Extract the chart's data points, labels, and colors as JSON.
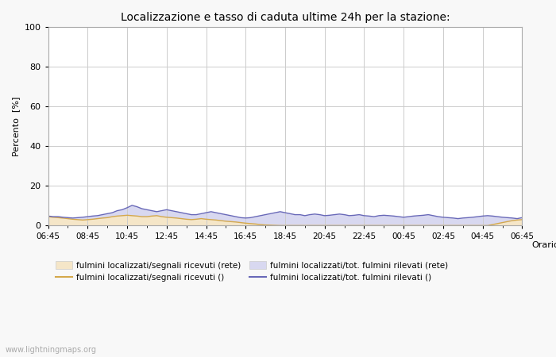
{
  "title": "Localizzazione e tasso di caduta ultime 24h per la stazione:",
  "ylabel": "Percento  [%]",
  "xlabel": "Orario",
  "watermark": "www.lightningmaps.org",
  "x_tick_labels": [
    "06:45",
    "08:45",
    "10:45",
    "12:45",
    "14:45",
    "16:45",
    "18:45",
    "20:45",
    "22:45",
    "00:45",
    "02:45",
    "04:45",
    "06:45"
  ],
  "ylim": [
    0,
    100
  ],
  "yticks": [
    0,
    20,
    40,
    60,
    80,
    100
  ],
  "yminor_ticks": [
    10,
    30,
    50,
    70,
    90
  ],
  "fill_color_1": "#f5e6c8",
  "fill_color_2": "#d8d8f0",
  "line_color_1": "#d4a84b",
  "line_color_2": "#6868b8",
  "legend_labels": [
    "fulmini localizzati/segnali ricevuti (rete)",
    "fulmini localizzati/segnali ricevuti ()",
    "fulmini localizzati/tot. fulmini rilevati (rete)",
    "fulmini localizzati/tot. fulmini rilevati ()"
  ],
  "background_color": "#f8f8f8",
  "plot_bg_color": "#ffffff",
  "grid_color": "#cccccc",
  "s1": [
    4.5,
    4.2,
    4.0,
    3.8,
    3.5,
    3.2,
    3.0,
    2.8,
    3.0,
    3.2,
    3.5,
    3.8,
    4.0,
    4.5,
    4.8,
    5.0,
    5.2,
    5.0,
    4.8,
    4.5,
    4.5,
    4.8,
    5.0,
    4.5,
    4.2,
    4.0,
    3.8,
    3.5,
    3.2,
    3.0,
    3.2,
    3.5,
    3.2,
    3.0,
    2.8,
    2.5,
    2.2,
    2.0,
    1.8,
    1.5,
    1.2,
    1.0,
    0.8,
    0.5,
    0.3,
    0.2,
    0.1,
    0.0,
    0.0,
    0.0,
    0.0,
    0.0,
    0.0,
    0.0,
    0.0,
    0.0,
    0.0,
    0.0,
    0.0,
    0.0,
    0.0,
    0.0,
    0.0,
    0.0,
    0.0,
    0.0,
    0.0,
    0.0,
    0.0,
    0.0,
    0.0,
    0.0,
    0.0,
    0.0,
    0.0,
    0.0,
    0.0,
    0.0,
    0.0,
    0.0,
    0.0,
    0.0,
    0.0,
    0.0,
    0.0,
    0.0,
    0.0,
    0.0,
    0.0,
    0.0,
    0.5,
    1.0,
    1.5,
    2.0,
    2.5,
    2.8,
    3.0
  ],
  "s2": [
    4.8,
    4.5,
    4.5,
    4.2,
    4.0,
    3.8,
    4.0,
    4.2,
    4.5,
    4.8,
    5.0,
    5.5,
    6.0,
    6.5,
    7.5,
    8.0,
    9.0,
    10.2,
    9.5,
    8.5,
    8.0,
    7.5,
    7.0,
    7.5,
    8.0,
    7.5,
    7.0,
    6.5,
    6.0,
    5.5,
    5.5,
    6.0,
    6.5,
    7.0,
    6.5,
    6.0,
    5.5,
    5.0,
    4.5,
    4.0,
    3.8,
    4.0,
    4.5,
    5.0,
    5.5,
    6.0,
    6.5,
    7.0,
    6.5,
    6.0,
    5.5,
    5.5,
    5.0,
    5.5,
    5.8,
    5.5,
    5.0,
    5.2,
    5.5,
    5.8,
    5.5,
    5.0,
    5.2,
    5.5,
    5.0,
    4.8,
    4.5,
    5.0,
    5.2,
    5.0,
    4.8,
    4.5,
    4.2,
    4.5,
    4.8,
    5.0,
    5.2,
    5.5,
    5.0,
    4.5,
    4.2,
    4.0,
    3.8,
    3.5,
    3.8,
    4.0,
    4.2,
    4.5,
    4.8,
    5.0,
    4.8,
    4.5,
    4.2,
    4.0,
    3.8,
    3.5,
    4.0
  ]
}
